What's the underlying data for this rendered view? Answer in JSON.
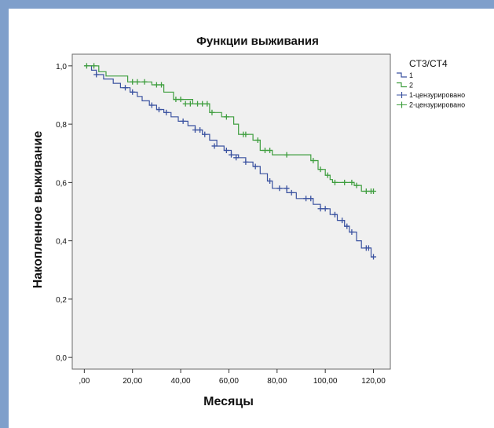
{
  "chart_data": {
    "type": "line",
    "title": "Функции выживания",
    "xlabel": "Месяцы",
    "ylabel": "Накопленное выживание",
    "x_ticks": [
      0,
      20,
      40,
      60,
      80,
      100,
      120
    ],
    "x_tick_labels": [
      ",00",
      "20,00",
      "40,00",
      "60,00",
      "80,00",
      "100,00",
      "120,00"
    ],
    "y_ticks": [
      0,
      0.2,
      0.4,
      0.6,
      0.8,
      1.0
    ],
    "y_tick_labels": [
      "0,0",
      "0,2",
      "0,4",
      "0,6",
      "0,8",
      "1,0"
    ],
    "xlim": [
      -5,
      127
    ],
    "ylim": [
      -0.04,
      1.04
    ],
    "grid": false,
    "legend": {
      "title": "CT3/CT4",
      "position": "top-right",
      "entries": [
        {
          "label": "1",
          "color": "#3a52a0",
          "marker": "step"
        },
        {
          "label": "2",
          "color": "#3f9e3f",
          "marker": "step"
        },
        {
          "label": "1-цензурировано",
          "color": "#3a52a0",
          "marker": "plus"
        },
        {
          "label": "2-цензурировано",
          "color": "#3f9e3f",
          "marker": "plus"
        }
      ]
    },
    "series": [
      {
        "name": "1",
        "color": "#3a52a0",
        "steps": [
          [
            0,
            1.0
          ],
          [
            3,
            0.985
          ],
          [
            5,
            0.97
          ],
          [
            8,
            0.955
          ],
          [
            12,
            0.94
          ],
          [
            15,
            0.925
          ],
          [
            19,
            0.91
          ],
          [
            22,
            0.895
          ],
          [
            24,
            0.88
          ],
          [
            27,
            0.865
          ],
          [
            30,
            0.85
          ],
          [
            33,
            0.84
          ],
          [
            36,
            0.825
          ],
          [
            39,
            0.81
          ],
          [
            43,
            0.795
          ],
          [
            46,
            0.78
          ],
          [
            49,
            0.765
          ],
          [
            52,
            0.745
          ],
          [
            55,
            0.725
          ],
          [
            58,
            0.71
          ],
          [
            61,
            0.695
          ],
          [
            64,
            0.685
          ],
          [
            67,
            0.67
          ],
          [
            70,
            0.655
          ],
          [
            73,
            0.63
          ],
          [
            76,
            0.605
          ],
          [
            78,
            0.58
          ],
          [
            84,
            0.565
          ],
          [
            88,
            0.545
          ],
          [
            95,
            0.525
          ],
          [
            98,
            0.51
          ],
          [
            102,
            0.49
          ],
          [
            105,
            0.47
          ],
          [
            108,
            0.45
          ],
          [
            110,
            0.43
          ],
          [
            113,
            0.4
          ],
          [
            115,
            0.375
          ],
          [
            119,
            0.345
          ],
          [
            120,
            0.345
          ]
        ],
        "censored": [
          [
            5,
            0.97
          ],
          [
            17,
            0.925
          ],
          [
            20,
            0.91
          ],
          [
            28,
            0.865
          ],
          [
            31,
            0.85
          ],
          [
            34,
            0.84
          ],
          [
            41,
            0.81
          ],
          [
            46,
            0.78
          ],
          [
            48,
            0.78
          ],
          [
            50,
            0.765
          ],
          [
            54,
            0.725
          ],
          [
            59,
            0.71
          ],
          [
            61,
            0.695
          ],
          [
            63,
            0.685
          ],
          [
            67,
            0.67
          ],
          [
            71,
            0.655
          ],
          [
            77,
            0.605
          ],
          [
            81,
            0.58
          ],
          [
            84,
            0.58
          ],
          [
            86,
            0.565
          ],
          [
            92,
            0.545
          ],
          [
            94,
            0.545
          ],
          [
            98,
            0.51
          ],
          [
            100,
            0.51
          ],
          [
            104,
            0.49
          ],
          [
            107,
            0.47
          ],
          [
            109,
            0.45
          ],
          [
            111,
            0.43
          ],
          [
            117,
            0.375
          ],
          [
            118,
            0.375
          ],
          [
            120,
            0.345
          ]
        ]
      },
      {
        "name": "2",
        "color": "#3f9e3f",
        "steps": [
          [
            0,
            1.0
          ],
          [
            6,
            0.98
          ],
          [
            9,
            0.965
          ],
          [
            18,
            0.945
          ],
          [
            28,
            0.935
          ],
          [
            33,
            0.91
          ],
          [
            37,
            0.885
          ],
          [
            45,
            0.87
          ],
          [
            52,
            0.84
          ],
          [
            57,
            0.825
          ],
          [
            62,
            0.8
          ],
          [
            64,
            0.765
          ],
          [
            70,
            0.745
          ],
          [
            73,
            0.71
          ],
          [
            78,
            0.695
          ],
          [
            94,
            0.675
          ],
          [
            97,
            0.645
          ],
          [
            100,
            0.625
          ],
          [
            102,
            0.61
          ],
          [
            103,
            0.6
          ],
          [
            112,
            0.59
          ],
          [
            115,
            0.57
          ],
          [
            120,
            0.57
          ]
        ],
        "censored": [
          [
            1,
            1.0
          ],
          [
            4,
            1.0
          ],
          [
            20,
            0.945
          ],
          [
            22,
            0.945
          ],
          [
            25,
            0.945
          ],
          [
            30,
            0.935
          ],
          [
            32,
            0.935
          ],
          [
            38,
            0.885
          ],
          [
            40,
            0.885
          ],
          [
            42,
            0.87
          ],
          [
            44,
            0.87
          ],
          [
            47,
            0.87
          ],
          [
            49,
            0.87
          ],
          [
            51,
            0.87
          ],
          [
            53,
            0.84
          ],
          [
            59,
            0.825
          ],
          [
            66,
            0.765
          ],
          [
            67,
            0.765
          ],
          [
            72,
            0.745
          ],
          [
            75,
            0.71
          ],
          [
            77,
            0.71
          ],
          [
            84,
            0.695
          ],
          [
            95,
            0.675
          ],
          [
            98,
            0.645
          ],
          [
            101,
            0.625
          ],
          [
            104,
            0.6
          ],
          [
            108,
            0.6
          ],
          [
            111,
            0.6
          ],
          [
            113,
            0.59
          ],
          [
            117,
            0.57
          ],
          [
            119,
            0.57
          ],
          [
            120,
            0.57
          ]
        ]
      }
    ]
  }
}
